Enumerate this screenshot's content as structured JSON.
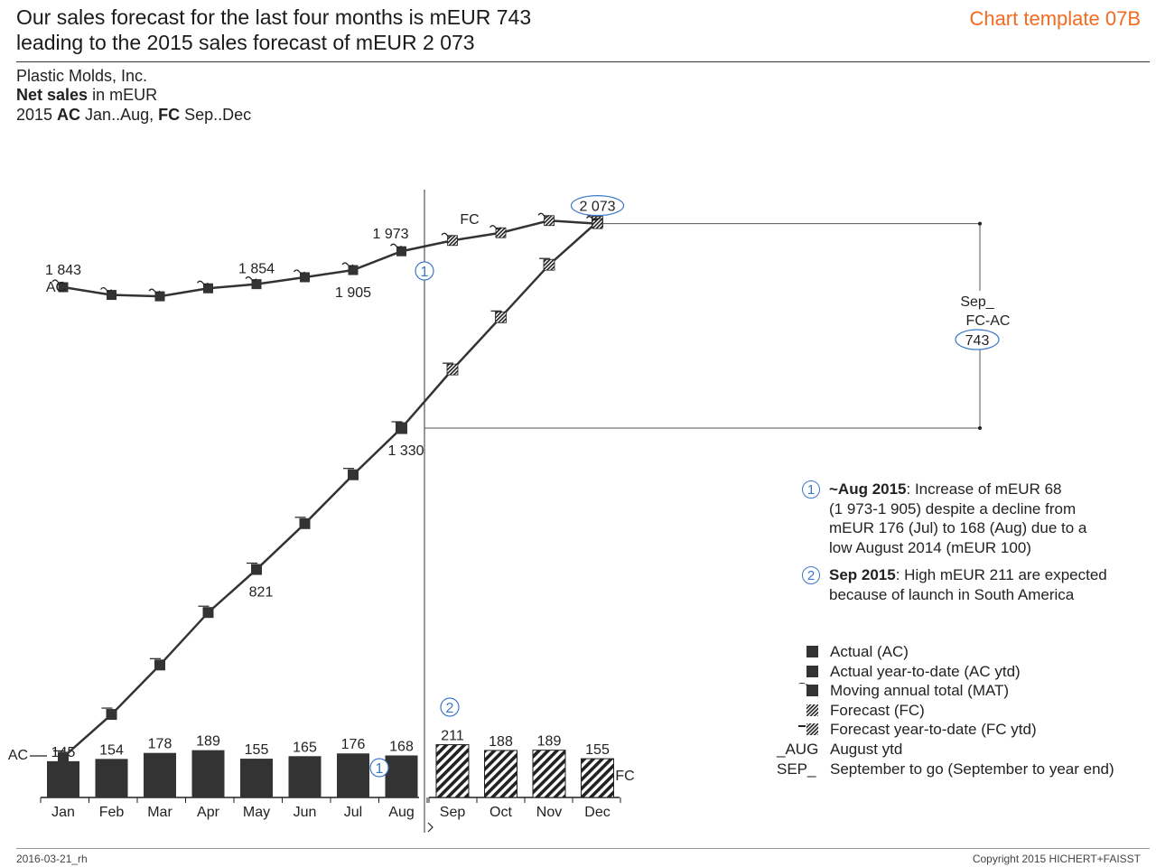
{
  "header": {
    "title_line1": "Our sales forecast for the last four months is mEUR 743",
    "title_line2": "leading to the 2015 sales forecast of mEUR 2 073",
    "template_tag": "Chart template 07B"
  },
  "subtitle": {
    "company": "Plastic Molds, Inc.",
    "measure_bold": "Net sales",
    "measure_rest": " in mEUR",
    "period_pre": "2015 ",
    "period_ac": "AC",
    "period_mid": " Jan..Aug, ",
    "period_fc": "FC",
    "period_post": " Sep..Dec"
  },
  "chart_data": {
    "type": "bar",
    "categories": [
      "Jan",
      "Feb",
      "Mar",
      "Apr",
      "May",
      "Jun",
      "Jul",
      "Aug",
      "Sep",
      "Oct",
      "Nov",
      "Dec"
    ],
    "scenario": [
      "AC",
      "AC",
      "AC",
      "AC",
      "AC",
      "AC",
      "AC",
      "AC",
      "FC",
      "FC",
      "FC",
      "FC"
    ],
    "series": [
      {
        "name": "Net sales",
        "values": [
          145,
          154,
          178,
          189,
          155,
          165,
          176,
          168,
          211,
          188,
          189,
          155
        ]
      },
      {
        "name": "Moving annual total (MAT)",
        "values": [
          1843,
          1815,
          1810,
          1839,
          1854,
          1879,
          1905,
          1973,
          2012,
          2040,
          2084,
          2073
        ]
      },
      {
        "name": "Year-to-date (ytd)",
        "values": [
          145,
          299,
          477,
          666,
          821,
          986,
          1162,
          1330,
          1541,
          1729,
          1918,
          2073
        ]
      }
    ],
    "point_labels": {
      "mat_jan": "1 843",
      "mat_may": "1 854",
      "mat_jul": "1 905",
      "mat_aug": "1 973",
      "mat_dec": "2 073",
      "ytd_may": "821",
      "ytd_aug": "1 330"
    },
    "series_tags": {
      "ac": "AC",
      "fc": "FC",
      "mat_fc": "FC"
    },
    "difference": {
      "line1": "Sep_",
      "line2": "FC-AC",
      "value": "743"
    },
    "callout_markers": [
      "1",
      "2"
    ]
  },
  "notes": [
    {
      "num": "1",
      "bold": "~Aug 2015",
      "lines": [
        ": Increase of  mEUR 68",
        "(1 973-1 905) despite a decline from",
        "mEUR 176 (Jul) to 168 (Aug) due to a",
        "low August 2014 (mEUR 100)"
      ]
    },
    {
      "num": "2",
      "bold": "Sep 2015",
      "lines": [
        ": High mEUR 211 are expected",
        "because of launch in South America"
      ]
    }
  ],
  "legend": [
    {
      "symbol": "",
      "label": "Actual (AC)"
    },
    {
      "symbol": "",
      "label": "Actual year-to-date (AC ytd)"
    },
    {
      "symbol": "",
      "label": "Moving annual total (MAT)"
    },
    {
      "symbol": "",
      "label": "Forecast (FC)"
    },
    {
      "symbol": "",
      "label": "Forecast year-to-date (FC ytd)"
    },
    {
      "symbol": "_AUG",
      "label": "August ytd"
    },
    {
      "symbol": "SEP_",
      "label": "September to go (September to year end)"
    }
  ],
  "footer": {
    "left": "2016-03-21_rh",
    "right": "Copyright 2015 HICHERT+FAISST"
  },
  "colors": {
    "actual": "#333333",
    "accent_orange": "#f26b21",
    "callout_blue": "#3b78c8"
  }
}
